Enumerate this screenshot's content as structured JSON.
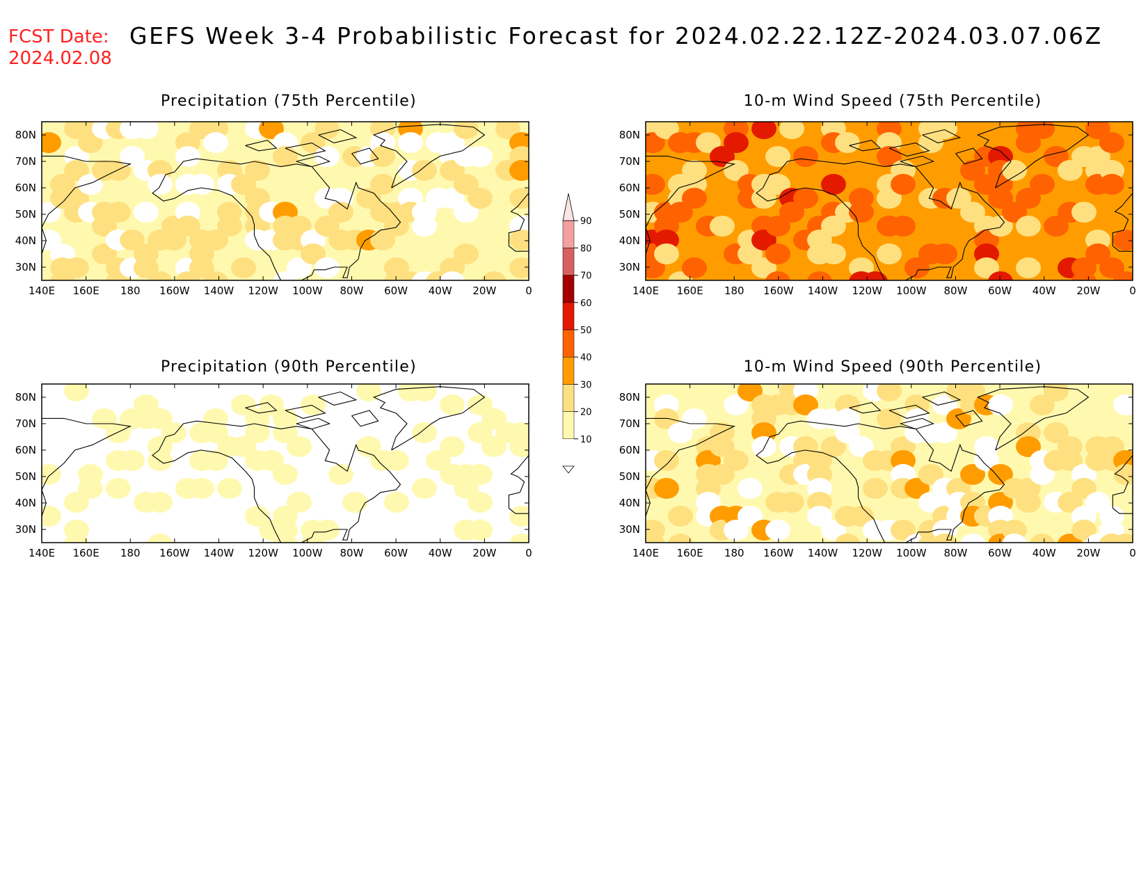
{
  "header": {
    "fcst_label": "FCST Date:",
    "fcst_date": "2024.02.08",
    "title": "GEFS Week 3-4 Probabilistic Forecast for 2024.02.22.12Z-2024.03.07.06Z"
  },
  "panels": [
    {
      "id": "p75",
      "title": "Precipitation (75th Percentile)",
      "base_level": 1,
      "hot_level": 3
    },
    {
      "id": "w75",
      "title": "10-m Wind Speed (75th Percentile)",
      "base_level": 3,
      "hot_level": 5
    },
    {
      "id": "p90",
      "title": "Precipitation (90th Percentile)",
      "base_level": 0,
      "hot_level": 1
    },
    {
      "id": "w90",
      "title": "10-m Wind Speed (90th Percentile)",
      "base_level": 1,
      "hot_level": 3
    }
  ],
  "axes": {
    "lon_labels": [
      "140E",
      "160E",
      "180",
      "160W",
      "140W",
      "120W",
      "100W",
      "80W",
      "60W",
      "40W",
      "20W",
      "0"
    ],
    "lat_labels": [
      "80N",
      "70N",
      "60N",
      "50N",
      "40N",
      "30N"
    ]
  },
  "colorbar": {
    "levels": [
      "10",
      "20",
      "30",
      "40",
      "50",
      "60",
      "70",
      "80",
      "90"
    ],
    "colors": [
      "#ffffff",
      "#fff9b0",
      "#ffe080",
      "#ff9d00",
      "#ff6200",
      "#e31a00",
      "#a50000",
      "#d86060",
      "#f4a0a0",
      "#ffe4e4"
    ]
  }
}
